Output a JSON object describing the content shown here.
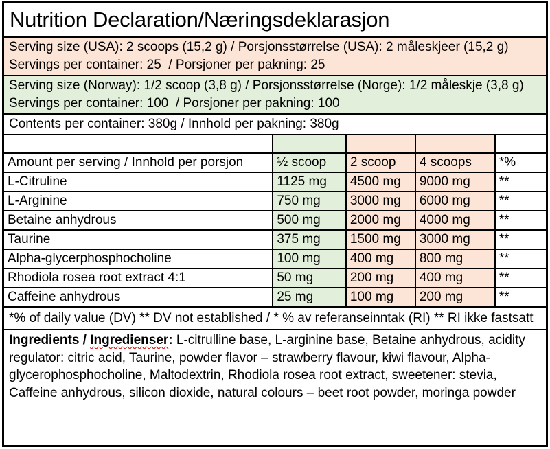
{
  "title": "Nutrition Declaration/Næringsdeklarasjon",
  "serving_usa": {
    "line1": "Serving size (USA): 2 scoops (15,2 g) / Porsjonsstørrelse (USA): 2 måleskjeer (15,2 g)",
    "line2": "Servings per container: 25  / Porsjoner per pakning: 25"
  },
  "serving_norway": {
    "line1": "Serving size (Norway): 1/2 scoop (3,8 g) / Porsjonsstørrelse (Norge): 1/2 måleskje (3,8 g)",
    "line2": "Servings per container: 100  / Porsjoner per pakning: 100"
  },
  "contents_line": "Contents per container: 380g / Innhold per pakning: 380g",
  "table": {
    "header": [
      "Amount per serving / Innhold per porsjon",
      "½ scoop",
      "2 scoop",
      "4 scoops",
      "*%"
    ],
    "rows": [
      [
        "L-Citruline",
        "1125 mg",
        "4500 mg",
        "9000 mg",
        "**"
      ],
      [
        "L-Arginine",
        "750 mg",
        "3000 mg",
        "6000 mg",
        "**"
      ],
      [
        "Betaine anhydrous",
        "500 mg",
        "2000 mg",
        "4000 mg",
        "**"
      ],
      [
        "Taurine",
        "375 mg",
        "1500 mg",
        "3000 mg",
        "**"
      ],
      [
        "Alpha-glycerphosphocholine",
        "100 mg",
        "400 mg",
        "800 mg",
        "**"
      ],
      [
        "Rhodiola rosea root extract 4:1",
        "50 mg",
        "200 mg",
        "400 mg",
        "**"
      ],
      [
        "Caffeine anhydrous",
        "25 mg",
        "100 mg",
        "200 mg",
        "**"
      ]
    ]
  },
  "footnote": "*% of daily value (DV) ** DV not established / * % av referanseinntak (RI) ** RI ikke fastsatt",
  "ingredients": {
    "label_prefix": "Ingredients / ",
    "label_no": "Ingredienser",
    "label_colon": ":",
    "body": " L-citrulline base, L-arginine base, Betaine anhydrous, acidity regulator: citric acid, Taurine, powder flavor – strawberry flavour, kiwi flavour, Alpha-glycerophosphocholine, Maltodextrin, Rhodiola rosea root extract, sweetener: stevia, Caffeine anhydrous, silicon dioxide, natural colours – beet root powder, moringa powder"
  },
  "colors": {
    "peach": "#FCE4D6",
    "green": "#E2EFDA",
    "border": "#000000",
    "squiggle_red": "#D40000"
  }
}
